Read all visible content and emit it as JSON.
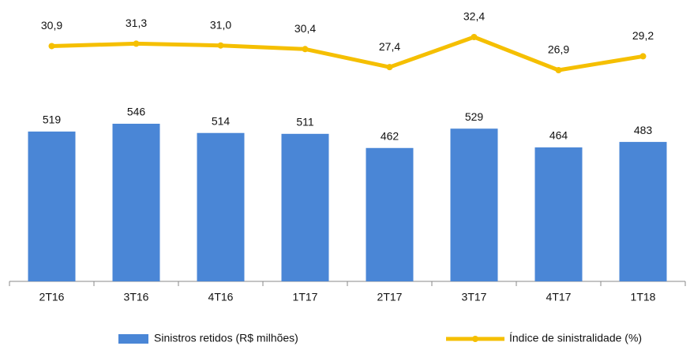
{
  "chart_data": {
    "type": "bar",
    "categories": [
      "2T16",
      "3T16",
      "4T16",
      "1T17",
      "2T17",
      "3T17",
      "4T17",
      "1T18"
    ],
    "series": [
      {
        "name": "Sinistros retidos (R$ milhões)",
        "type": "bar",
        "color": "#4a86d6",
        "values": [
          519,
          546,
          514,
          511,
          462,
          529,
          464,
          483
        ]
      },
      {
        "name": "Índice de sinistralidade (%)",
        "type": "line",
        "axis": "y2",
        "color": "#f5bf00",
        "values": [
          30.9,
          31.3,
          31.0,
          30.4,
          27.4,
          32.4,
          26.9,
          29.2
        ],
        "value_labels": [
          "30,9",
          "31,3",
          "31,0",
          "30,4",
          "27,4",
          "32,4",
          "26,9",
          "29,2"
        ]
      }
    ]
  }
}
